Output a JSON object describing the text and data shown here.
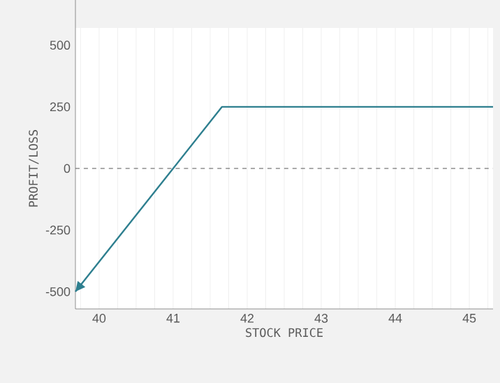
{
  "chart_data": {
    "type": "line",
    "xlabel": "STOCK PRICE",
    "ylabel": "PROFIT/LOSS",
    "x": [
      39.68,
      41.66,
      45.32
    ],
    "series": [
      {
        "color": "#2e7f8f",
        "values": [
          -500,
          250,
          250
        ]
      }
    ],
    "xlim": [
      39.68,
      45.32
    ],
    "ylim": [
      -570,
      570
    ],
    "xticks": [
      {
        "value": 39.75,
        "label": null
      },
      40,
      {
        "value": 40.25,
        "label": null
      },
      {
        "value": 40.5,
        "label": null
      },
      {
        "value": 40.75,
        "label": null
      },
      41,
      {
        "value": 41.25,
        "label": null
      },
      {
        "value": 41.5,
        "label": null
      },
      {
        "value": 41.75,
        "label": null
      },
      42,
      {
        "value": 42.25,
        "label": null
      },
      {
        "value": 42.5,
        "label": null
      },
      {
        "value": 42.75,
        "label": null
      },
      43,
      {
        "value": 43.25,
        "label": null
      },
      {
        "value": 43.5,
        "label": null
      },
      {
        "value": 43.75,
        "label": null
      },
      44,
      {
        "value": 44.25,
        "label": null
      },
      {
        "value": 44.5,
        "label": null
      },
      {
        "value": 44.75,
        "label": null
      },
      45,
      {
        "value": 45.25,
        "label": null
      }
    ],
    "yticks": [
      -500,
      -250,
      0,
      250,
      500
    ],
    "grid": "x",
    "ref_lines": [
      {
        "axis": "y",
        "value": 0,
        "color": "#555555",
        "line_style": "dashed"
      }
    ]
  }
}
